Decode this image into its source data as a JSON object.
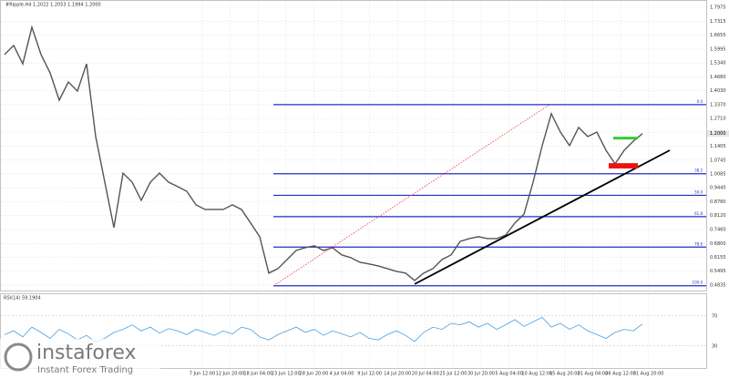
{
  "chart_data": {
    "type": "line",
    "title": "#Ripple,H4  1.2022 1.2053 1.1994 1.2000",
    "series": [
      {
        "name": "Ripple",
        "color": "#555555",
        "values": [
          1.574,
          1.617,
          1.53,
          1.703,
          1.574,
          1.487,
          1.358,
          1.444,
          1.401,
          1.53,
          1.186,
          0.97,
          0.755,
          1.013,
          0.97,
          0.884,
          0.97,
          1.013,
          0.97,
          0.949,
          0.927,
          0.863,
          0.841,
          0.841,
          0.841,
          0.863,
          0.841,
          0.777,
          0.712,
          0.54,
          0.561,
          0.604,
          0.647,
          0.66,
          0.669,
          0.647,
          0.66,
          0.626,
          0.613,
          0.591,
          0.583,
          0.574,
          0.561,
          0.548,
          0.54,
          0.505,
          0.54,
          0.561,
          0.604,
          0.626,
          0.69,
          0.703,
          0.712,
          0.703,
          0.703,
          0.72,
          0.777,
          0.819,
          0.97,
          1.143,
          1.294,
          1.207,
          1.143,
          1.229,
          1.186,
          1.207,
          1.121,
          1.057,
          1.121,
          1.164,
          1.2
        ]
      }
    ],
    "ylim": [
      0.453,
      1.832
    ],
    "yticks": [
      1.7975,
      1.7315,
      1.6655,
      1.5995,
      {
        "value": 1.534,
        "label": "1.5340"
      },
      {
        "value": 1.468,
        "label": "1.4680"
      },
      {
        "value": 1.403,
        "label": "1.4030"
      },
      {
        "value": 1.337,
        "label": "1.3370"
      },
      {
        "value": 1.271,
        "label": "1.2710"
      },
      {
        "value": 1.205,
        "label": "1.2050"
      },
      1.1405,
      1.0745,
      1.0085,
      {
        "value": 0.944,
        "label": "0.9440"
      },
      {
        "value": 0.878,
        "label": "0.8780"
      },
      {
        "value": 0.812,
        "label": "0.8120"
      },
      {
        "value": 0.746,
        "label": "0.7460"
      },
      {
        "value": 0.68,
        "label": "0.6800"
      },
      0.6155,
      0.5495,
      0.4835
    ],
    "last_price": {
      "value": 1.2,
      "label": "1.2000"
    },
    "xtick_labels": [
      "7 Jun 12:00",
      "12 Jun 20:00",
      "18 Jun 04:00",
      "23 Jun 12:00",
      "28 Jun 20:00",
      "4 Jul 04:00",
      "9 Jul 12:00",
      "14 Jul 20:00",
      "20 Jul 04:00",
      "25 Jul 12:00",
      "30 Jul 20:00",
      "5 Aug 04:00",
      "10 Aug 12:00",
      "15 Aug 20:00",
      "21 Aug 04:00",
      "26 Aug 12:00",
      "31 Aug 20:00"
    ],
    "fib_levels": [
      {
        "label": "0.0",
        "value": 1.337
      },
      {
        "label": "38.2",
        "value": 1.01
      },
      {
        "label": "50.0",
        "value": 0.908
      },
      {
        "label": "61.8",
        "value": 0.807
      },
      {
        "label": "78.6",
        "value": 0.663
      },
      {
        "label": "100.0",
        "value": 0.48
      }
    ],
    "fib_color": "#1f2fc8",
    "trendline": {
      "x": [
        45,
        73
      ],
      "values": [
        0.488,
        1.121
      ],
      "color": "#000000"
    },
    "fib_anchor": {
      "x": [
        29.5,
        59.8
      ],
      "values": [
        0.48,
        1.337
      ],
      "color": "#e04040"
    },
    "target_box": {
      "x": [
        66.8,
        69.5
      ],
      "values": [
        1.185,
        1.172
      ],
      "color": "#33cc33"
    },
    "stop_box": {
      "x": [
        66.3,
        69.5
      ],
      "values": [
        1.06,
        1.035
      ],
      "color": "#ee1111"
    },
    "rsi": {
      "title": "RSI(14) 59.1904",
      "color": "#4a9fe0",
      "ylim": [
        0,
        100
      ],
      "yticks": [
        70,
        30
      ],
      "values": [
        45,
        50,
        42,
        55,
        48,
        40,
        52,
        46,
        38,
        44,
        35,
        40,
        48,
        52,
        58,
        50,
        55,
        47,
        53,
        50,
        45,
        52,
        48,
        44,
        50,
        46,
        55,
        52,
        42,
        38,
        45,
        50,
        55,
        48,
        52,
        44,
        50,
        46,
        42,
        48,
        40,
        38,
        45,
        50,
        44,
        36,
        48,
        55,
        52,
        60,
        58,
        62,
        55,
        60,
        52,
        58,
        65,
        56,
        62,
        68,
        55,
        60,
        52,
        58,
        50,
        45,
        40,
        48,
        52,
        50,
        59
      ]
    },
    "logo": {
      "name": "instaforex",
      "tagline": "Instant Forex Trading"
    }
  }
}
